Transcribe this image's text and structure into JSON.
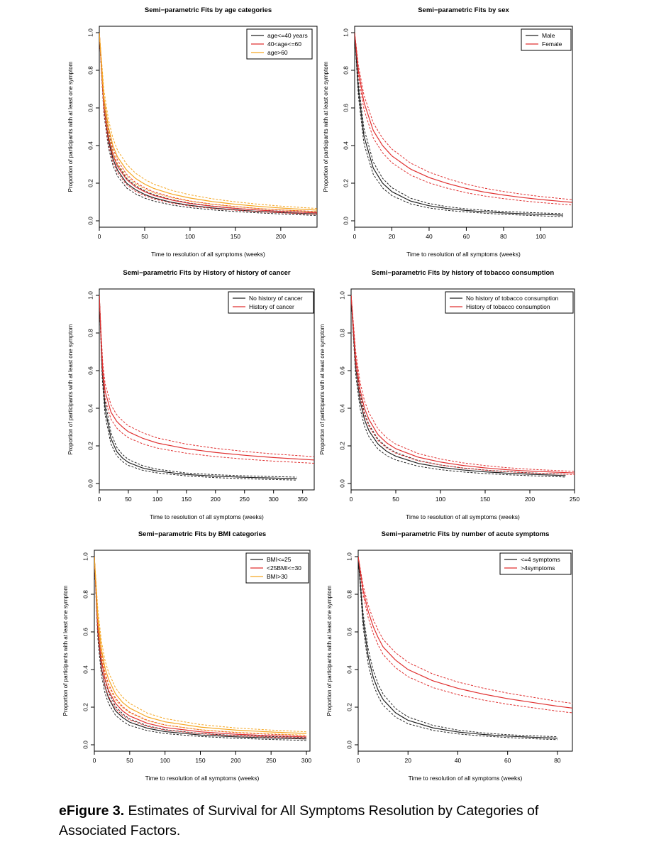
{
  "chart_data": [
    {
      "type": "line",
      "title": "Semi−parametric Fits by age categories",
      "xlabel": "Time to resolution of all symptoms (weeks)",
      "ylabel": "Proportion of participants with at least one symptom",
      "xlim": [
        0,
        240
      ],
      "ylim": [
        0,
        1.0
      ],
      "xticks": [
        0,
        50,
        100,
        150,
        200
      ],
      "yticks": [
        0.0,
        0.2,
        0.4,
        0.6,
        0.8,
        1.0
      ],
      "legend_position": "top-right",
      "series": [
        {
          "name": "age<=40 years",
          "color": "#222222",
          "tmax": 240,
          "x": [
            0,
            5,
            10,
            15,
            20,
            30,
            40,
            50,
            60,
            80,
            100,
            125,
            150,
            175,
            200,
            225,
            240
          ],
          "y": [
            1.0,
            0.61,
            0.43,
            0.33,
            0.27,
            0.2,
            0.165,
            0.14,
            0.122,
            0.098,
            0.082,
            0.068,
            0.058,
            0.05,
            0.044,
            0.039,
            0.036
          ]
        },
        {
          "name": "40<age<=60",
          "color": "#e03030",
          "tmax": 240,
          "x": [
            0,
            5,
            10,
            15,
            20,
            30,
            40,
            50,
            60,
            80,
            100,
            125,
            150,
            175,
            200,
            225,
            240
          ],
          "y": [
            1.0,
            0.62,
            0.45,
            0.35,
            0.29,
            0.22,
            0.18,
            0.155,
            0.135,
            0.11,
            0.092,
            0.077,
            0.066,
            0.057,
            0.05,
            0.045,
            0.042
          ]
        },
        {
          "name": "age>60",
          "color": "#f5a623",
          "tmax": 240,
          "x": [
            0,
            5,
            10,
            15,
            20,
            30,
            40,
            50,
            60,
            80,
            100,
            125,
            150,
            175,
            200,
            225,
            240
          ],
          "y": [
            1.0,
            0.66,
            0.5,
            0.4,
            0.34,
            0.27,
            0.225,
            0.195,
            0.172,
            0.142,
            0.121,
            0.102,
            0.088,
            0.077,
            0.068,
            0.061,
            0.057
          ]
        }
      ]
    },
    {
      "type": "line",
      "title": "Semi−parametric Fits by sex",
      "xlabel": "Time to resolution of all symptoms (weeks)",
      "ylabel": "Proportion of participants with at least one symptom",
      "xlim": [
        0,
        117
      ],
      "ylim": [
        0,
        1.0
      ],
      "xticks": [
        0,
        20,
        40,
        60,
        80,
        100
      ],
      "yticks": [
        0.0,
        0.2,
        0.4,
        0.6,
        0.8,
        1.0
      ],
      "legend_position": "top-right",
      "series": [
        {
          "name": "Male",
          "color": "#222222",
          "tmax": 112,
          "x": [
            0,
            2,
            5,
            10,
            15,
            20,
            30,
            40,
            50,
            60,
            70,
            80,
            90,
            100,
            112
          ],
          "y": [
            1.0,
            0.7,
            0.45,
            0.28,
            0.2,
            0.155,
            0.105,
            0.08,
            0.065,
            0.055,
            0.048,
            0.042,
            0.038,
            0.034,
            0.03
          ]
        },
        {
          "name": "Female",
          "color": "#e03030",
          "tmax": 117,
          "x": [
            0,
            2,
            5,
            10,
            15,
            20,
            30,
            40,
            50,
            60,
            70,
            80,
            90,
            100,
            117
          ],
          "y": [
            1.0,
            0.8,
            0.63,
            0.48,
            0.4,
            0.345,
            0.275,
            0.23,
            0.198,
            0.172,
            0.152,
            0.137,
            0.124,
            0.113,
            0.098
          ]
        }
      ]
    },
    {
      "type": "line",
      "title": "Semi−parametric Fits by History of history of cancer",
      "xlabel": "Time to resolution of all symptoms (weeks)",
      "ylabel": "Proportion of participants with at least one symptom",
      "xlim": [
        0,
        370
      ],
      "ylim": [
        0,
        1.0
      ],
      "xticks": [
        0,
        50,
        100,
        150,
        200,
        250,
        300,
        350
      ],
      "yticks": [
        0.0,
        0.2,
        0.4,
        0.6,
        0.8,
        1.0
      ],
      "legend_position": "top-right",
      "series": [
        {
          "name": "No history of cancer",
          "color": "#222222",
          "tmax": 340,
          "x": [
            0,
            5,
            10,
            20,
            30,
            40,
            50,
            75,
            100,
            150,
            200,
            250,
            300,
            340
          ],
          "y": [
            1.0,
            0.6,
            0.4,
            0.24,
            0.17,
            0.135,
            0.112,
            0.082,
            0.066,
            0.048,
            0.039,
            0.033,
            0.029,
            0.026
          ]
        },
        {
          "name": "History of cancer",
          "color": "#e03030",
          "tmax": 370,
          "x": [
            0,
            3,
            6,
            10,
            20,
            30,
            40,
            50,
            75,
            100,
            150,
            200,
            250,
            300,
            370
          ],
          "y": [
            1.0,
            0.78,
            0.6,
            0.49,
            0.38,
            0.33,
            0.3,
            0.275,
            0.24,
            0.215,
            0.185,
            0.165,
            0.15,
            0.138,
            0.125
          ]
        }
      ]
    },
    {
      "type": "line",
      "title": "Semi−parametric Fits by history of tobacco consumption",
      "xlabel": "Time to resolution of all symptoms (weeks)",
      "ylabel": "Proportion of participants with at least one symptom",
      "xlim": [
        0,
        250
      ],
      "ylim": [
        0,
        1.0
      ],
      "xticks": [
        0,
        50,
        100,
        150,
        200,
        250
      ],
      "yticks": [
        0.0,
        0.2,
        0.4,
        0.6,
        0.8,
        1.0
      ],
      "legend_position": "top-right",
      "series": [
        {
          "name": "No history of tobacco consumption",
          "color": "#222222",
          "tmax": 240,
          "x": [
            0,
            5,
            10,
            15,
            20,
            30,
            40,
            50,
            75,
            100,
            125,
            150,
            175,
            200,
            240
          ],
          "y": [
            1.0,
            0.62,
            0.44,
            0.34,
            0.28,
            0.21,
            0.17,
            0.145,
            0.107,
            0.086,
            0.072,
            0.062,
            0.055,
            0.049,
            0.042
          ]
        },
        {
          "name": "History of tobacco consumption",
          "color": "#e03030",
          "tmax": 250,
          "x": [
            0,
            5,
            10,
            15,
            20,
            30,
            40,
            50,
            75,
            100,
            125,
            150,
            175,
            200,
            250
          ],
          "y": [
            1.0,
            0.67,
            0.5,
            0.4,
            0.34,
            0.26,
            0.215,
            0.185,
            0.14,
            0.114,
            0.096,
            0.083,
            0.073,
            0.066,
            0.056
          ]
        }
      ]
    },
    {
      "type": "line",
      "title": "Semi−parametric Fits by BMI categories",
      "xlabel": "Time to resolution of all symptoms (weeks)",
      "ylabel": "Proportion of participants with at least one symptom",
      "xlim": [
        0,
        305
      ],
      "ylim": [
        0,
        1.0
      ],
      "xticks": [
        0,
        50,
        100,
        150,
        200,
        250,
        300
      ],
      "yticks": [
        0.0,
        0.2,
        0.4,
        0.6,
        0.8,
        1.0
      ],
      "legend_position": "top-right",
      "series": [
        {
          "name": "BMI<=25",
          "color": "#222222",
          "tmax": 300,
          "x": [
            0,
            5,
            10,
            15,
            20,
            30,
            40,
            50,
            75,
            100,
            150,
            200,
            250,
            300
          ],
          "y": [
            1.0,
            0.6,
            0.41,
            0.31,
            0.25,
            0.18,
            0.145,
            0.12,
            0.088,
            0.07,
            0.052,
            0.042,
            0.036,
            0.031
          ]
        },
        {
          "name": "<25BMI<=30",
          "color": "#e03030",
          "tmax": 300,
          "x": [
            0,
            5,
            10,
            15,
            20,
            30,
            40,
            50,
            75,
            100,
            150,
            200,
            250,
            300
          ],
          "y": [
            1.0,
            0.63,
            0.45,
            0.35,
            0.29,
            0.22,
            0.18,
            0.153,
            0.114,
            0.092,
            0.069,
            0.056,
            0.048,
            0.042
          ]
        },
        {
          "name": "BMI>30",
          "color": "#f5a623",
          "tmax": 300,
          "x": [
            0,
            5,
            10,
            15,
            20,
            30,
            40,
            50,
            75,
            100,
            150,
            200,
            250,
            300
          ],
          "y": [
            1.0,
            0.68,
            0.51,
            0.41,
            0.35,
            0.27,
            0.225,
            0.195,
            0.148,
            0.122,
            0.094,
            0.078,
            0.068,
            0.06
          ]
        }
      ]
    },
    {
      "type": "line",
      "title": "Semi−parametric Fits by number of acute symptoms",
      "xlabel": "Time to resolution of all symptoms (weeks)",
      "ylabel": "Proportion of participants with at least one symptom",
      "xlim": [
        0,
        86
      ],
      "ylim": [
        0,
        1.0
      ],
      "xticks": [
        0,
        20,
        40,
        60,
        80
      ],
      "yticks": [
        0.0,
        0.2,
        0.4,
        0.6,
        0.8,
        1.0
      ],
      "legend_position": "top-right",
      "series": [
        {
          "name": "<=4 symptoms",
          "color": "#222222",
          "tmax": 80,
          "x": [
            0,
            2,
            4,
            6,
            8,
            10,
            15,
            20,
            30,
            40,
            50,
            60,
            70,
            80
          ],
          "y": [
            1.0,
            0.66,
            0.47,
            0.36,
            0.29,
            0.24,
            0.17,
            0.13,
            0.09,
            0.068,
            0.055,
            0.046,
            0.04,
            0.035
          ]
        },
        {
          "name": ">4symptoms",
          "color": "#e03030",
          "tmax": 86,
          "x": [
            0,
            2,
            4,
            6,
            8,
            10,
            15,
            20,
            30,
            40,
            50,
            60,
            70,
            80,
            86
          ],
          "y": [
            1.0,
            0.82,
            0.71,
            0.63,
            0.57,
            0.52,
            0.45,
            0.4,
            0.34,
            0.3,
            0.27,
            0.245,
            0.225,
            0.205,
            0.195
          ]
        }
      ]
    }
  ],
  "caption": {
    "label": "eFigure 3.",
    "text": "Estimates of Survival for All Symptoms Resolution by Categories of Associated Factors."
  }
}
